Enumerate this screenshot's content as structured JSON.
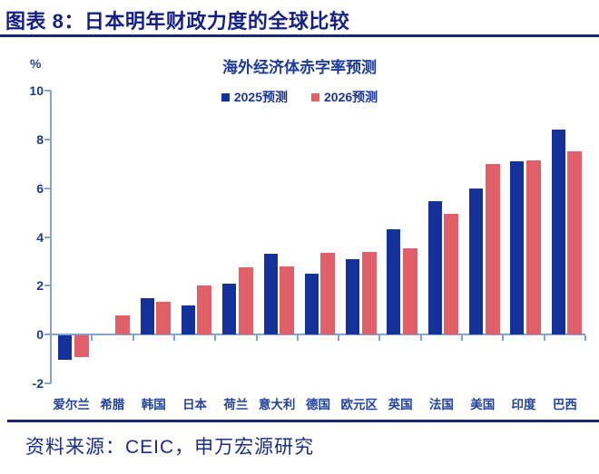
{
  "header": {
    "title": "图表 8：日本明年财政力度的全球比较"
  },
  "chart_data": {
    "type": "bar",
    "title": "海外经济体赤字率预测",
    "unit_label": "%",
    "categories": [
      "爱尔兰",
      "希腊",
      "韩国",
      "日本",
      "荷兰",
      "意大利",
      "德国",
      "欧元区",
      "英国",
      "法国",
      "美国",
      "印度",
      "巴西"
    ],
    "series": [
      {
        "name": "2025预测",
        "color": "#14309b",
        "values": [
          -1.0,
          0,
          1.5,
          1.2,
          2.1,
          3.3,
          2.5,
          3.1,
          4.3,
          5.45,
          6.0,
          7.1,
          8.4
        ]
      },
      {
        "name": "2026预测",
        "color": "#e05f68",
        "values": [
          -0.9,
          0.8,
          1.35,
          2.0,
          2.75,
          2.8,
          3.35,
          3.4,
          3.55,
          4.95,
          7.0,
          7.15,
          7.5
        ]
      }
    ],
    "ylim": [
      -2,
      10
    ],
    "yticks": [
      10,
      8,
      6,
      4,
      2,
      0,
      -2
    ],
    "grid": false,
    "legend_position": "top-center",
    "axis_color": "#82a4cc"
  },
  "source": {
    "text": "资料来源：CEIC，申万宏源研究"
  }
}
